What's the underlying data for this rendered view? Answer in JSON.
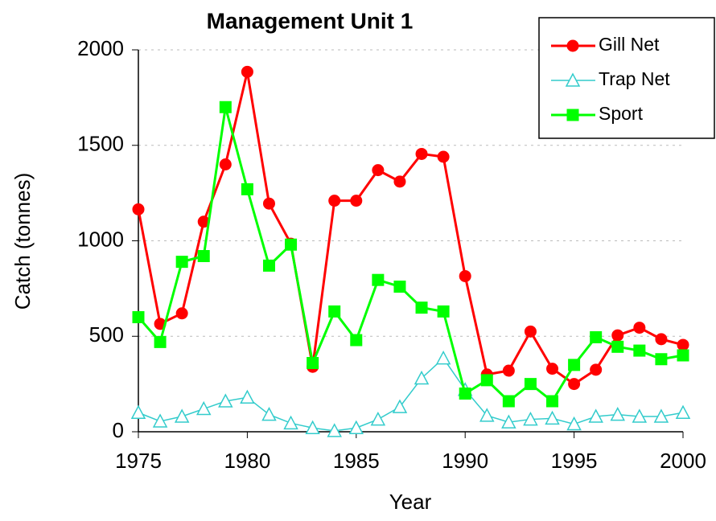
{
  "chart_data": {
    "type": "line",
    "title": "Management Unit 1",
    "x_label": "Year",
    "y_label": "Catch (tonnes)",
    "x": [
      1975,
      1976,
      1977,
      1978,
      1979,
      1980,
      1981,
      1982,
      1983,
      1984,
      1985,
      1986,
      1987,
      1988,
      1989,
      1990,
      1991,
      1992,
      1993,
      1994,
      1995,
      1996,
      1997,
      1998,
      1999,
      2000
    ],
    "series": [
      {
        "name": "Gill Net",
        "color": "#ff0000",
        "marker": "circle",
        "values": [
          1165,
          565,
          620,
          1100,
          1400,
          1885,
          1195,
          985,
          340,
          1210,
          1210,
          1370,
          1310,
          1455,
          1440,
          815,
          300,
          320,
          525,
          330,
          250,
          325,
          505,
          545,
          485,
          455
        ]
      },
      {
        "name": "Trap Net",
        "color": "#33cccc",
        "marker": "triangle",
        "values": [
          100,
          55,
          80,
          120,
          160,
          180,
          90,
          45,
          20,
          5,
          20,
          65,
          130,
          280,
          385,
          220,
          85,
          50,
          65,
          70,
          40,
          80,
          90,
          80,
          80,
          100
        ]
      },
      {
        "name": "Sport",
        "color": "#00ff00",
        "marker": "square",
        "values": [
          600,
          470,
          890,
          920,
          1700,
          1270,
          870,
          980,
          360,
          630,
          480,
          795,
          760,
          650,
          630,
          200,
          270,
          160,
          250,
          160,
          350,
          495,
          445,
          425,
          380,
          400
        ]
      }
    ],
    "xlim": [
      1975,
      2000
    ],
    "xticks": [
      1975,
      1980,
      1985,
      1990,
      1995,
      2000
    ],
    "ylim": [
      0,
      2000
    ],
    "yticks": [
      0,
      500,
      1000,
      1500,
      2000
    ],
    "grid": true,
    "legend": "top-right"
  }
}
